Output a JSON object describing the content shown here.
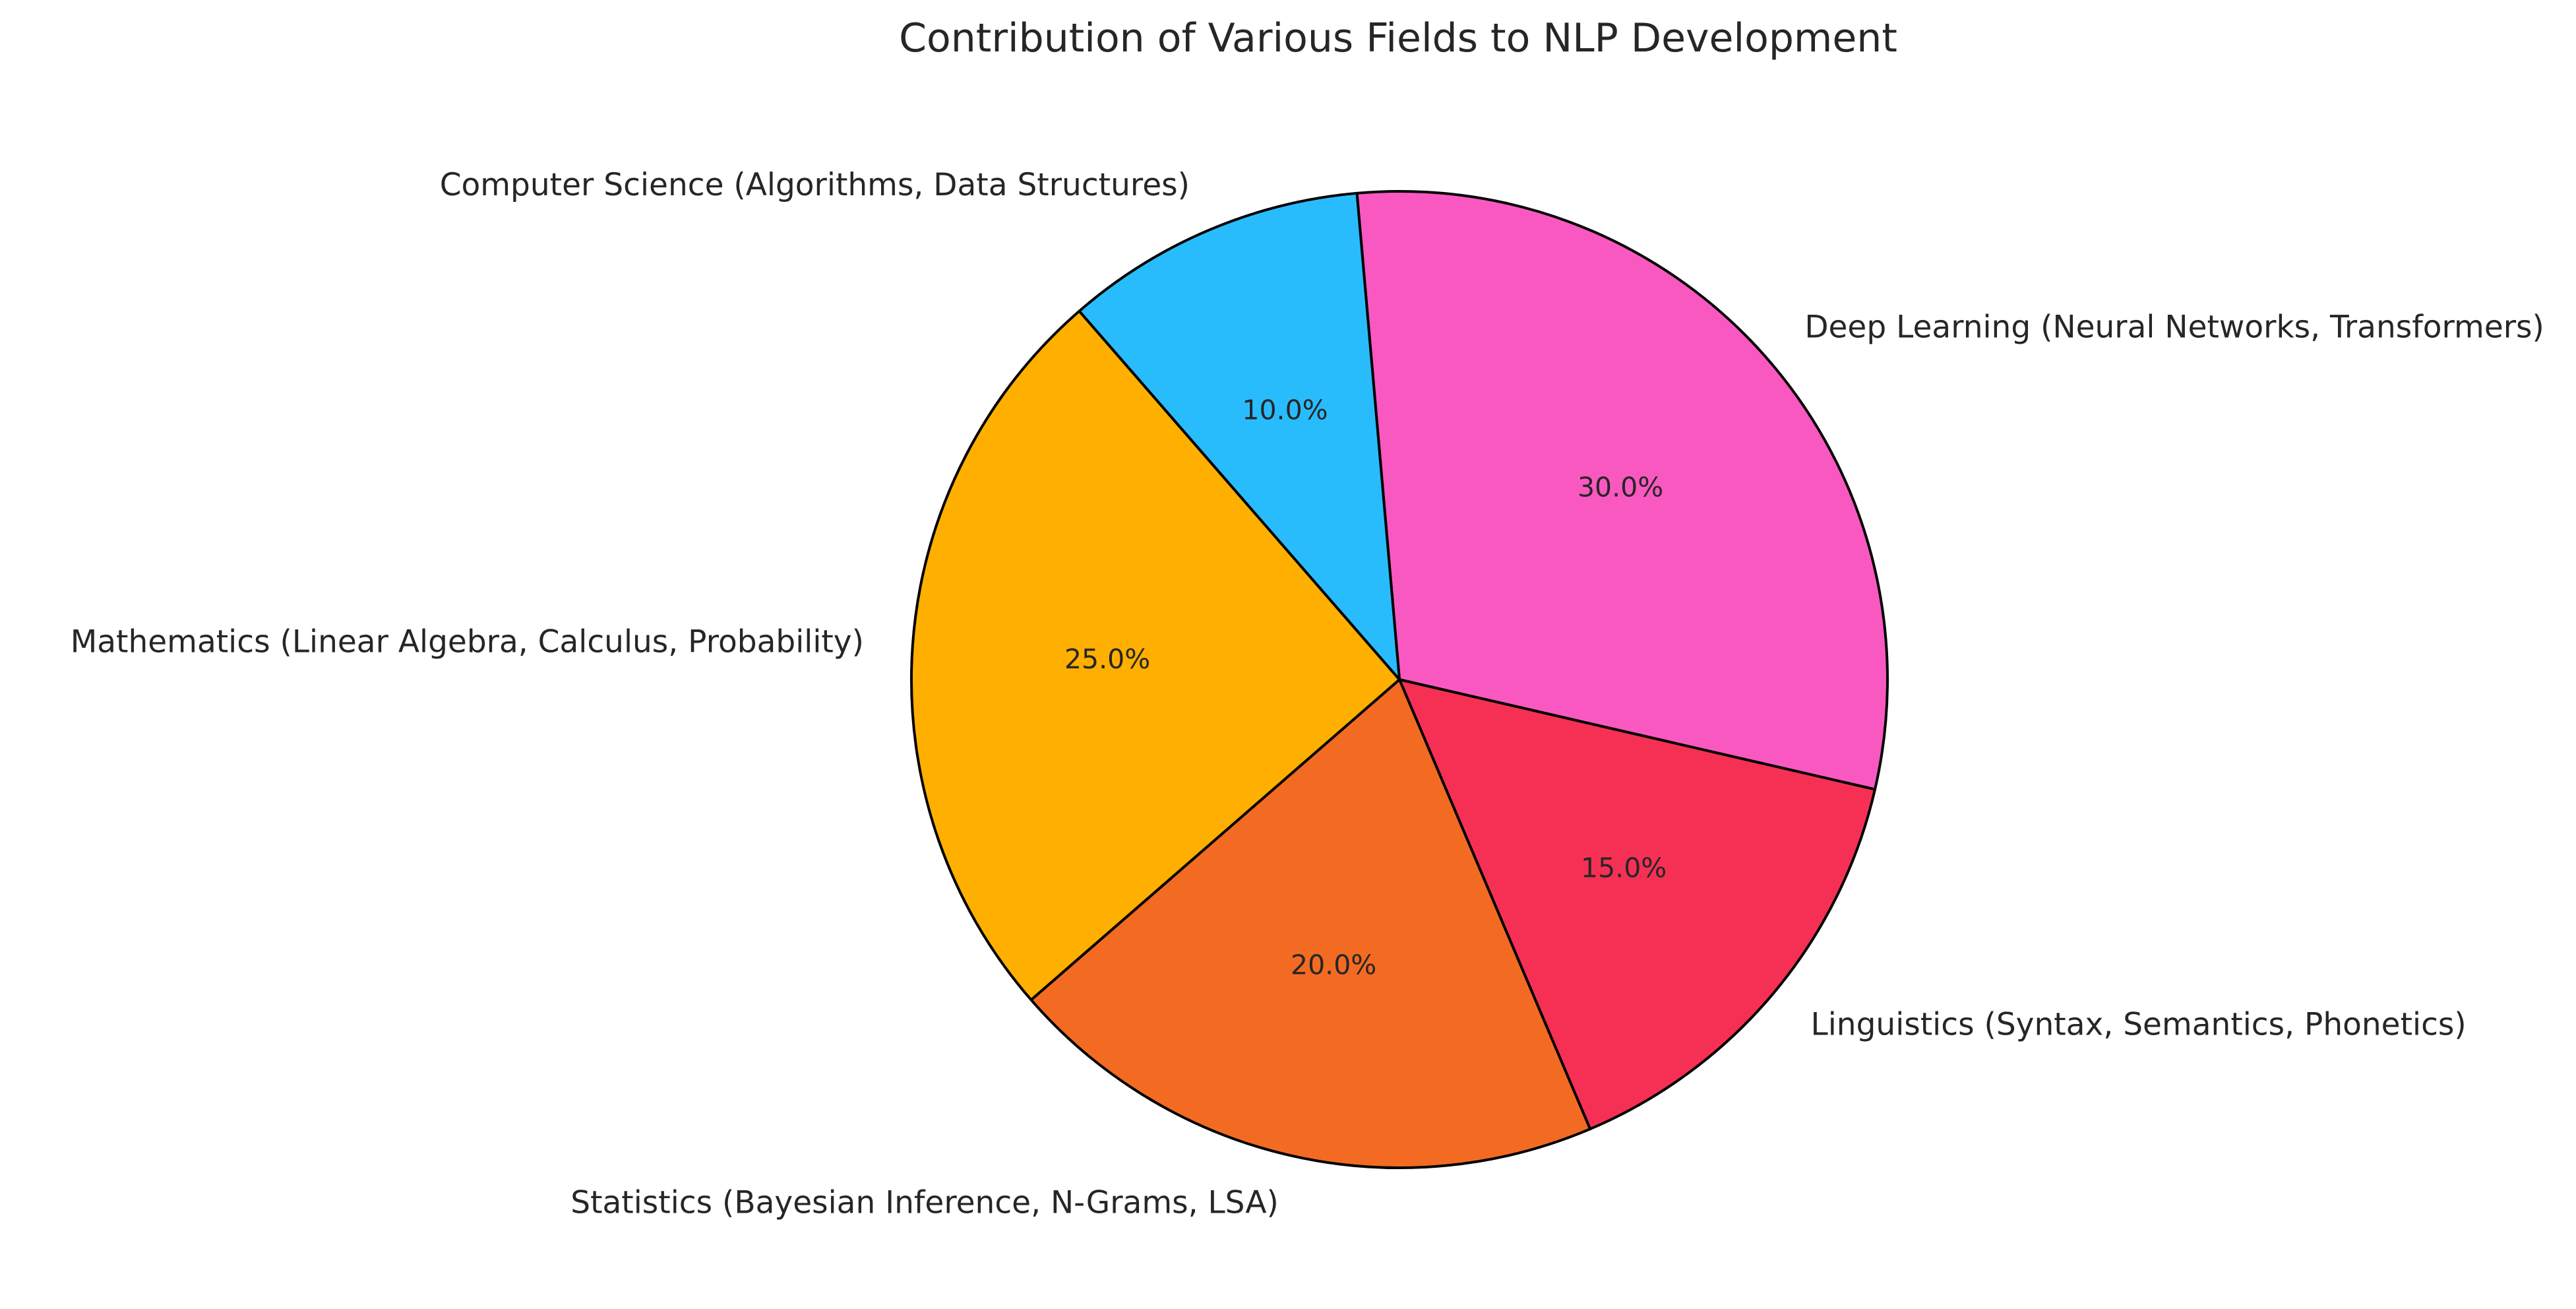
{
  "chart_data": {
    "type": "pie",
    "title": "Contribution of Various Fields to NLP Development",
    "start_angle_deg": 95,
    "direction": "clockwise",
    "slices": [
      {
        "label": "Deep Learning (Neural Networks, Transformers)",
        "value": 30,
        "pct_label": "30.0%",
        "color": "#F958C1"
      },
      {
        "label": "Linguistics (Syntax, Semantics, Phonetics)",
        "value": 15,
        "pct_label": "15.0%",
        "color": "#F63055"
      },
      {
        "label": "Statistics (Bayesian Inference, N-Grams, LSA)",
        "value": 20,
        "pct_label": "20.0%",
        "color": "#F36B22"
      },
      {
        "label": "Mathematics (Linear Algebra, Calculus, Probability)",
        "value": 25,
        "pct_label": "25.0%",
        "color": "#FFAF00"
      },
      {
        "label": "Computer Science (Algorithms, Data Structures)",
        "value": 10,
        "pct_label": "10.0%",
        "color": "#29BCFD"
      }
    ]
  }
}
